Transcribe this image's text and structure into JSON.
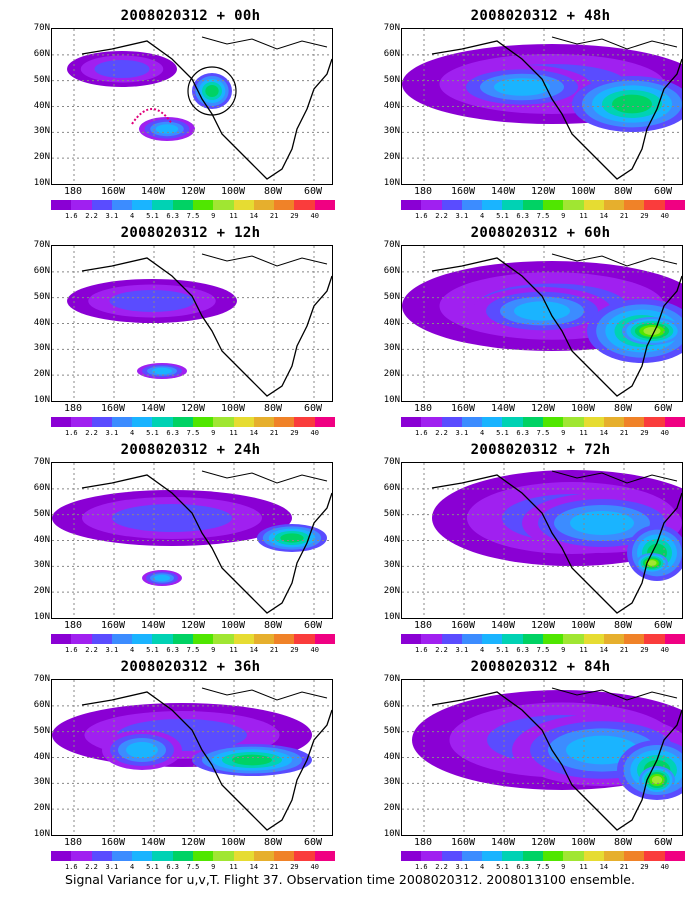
{
  "panels": [
    {
      "title": "2008020312 + 00h"
    },
    {
      "title": "2008020312 + 48h"
    },
    {
      "title": "2008020312 + 12h"
    },
    {
      "title": "2008020312 + 60h"
    },
    {
      "title": "2008020312 + 24h"
    },
    {
      "title": "2008020312 + 72h"
    },
    {
      "title": "2008020312 + 36h"
    },
    {
      "title": "2008020312 + 84h"
    }
  ],
  "lat_labels": [
    "70N",
    "60N",
    "50N",
    "40N",
    "30N",
    "20N",
    "10N"
  ],
  "lon_labels": [
    "180",
    "160W",
    "140W",
    "120W",
    "100W",
    "80W",
    "60W"
  ],
  "colorbar": {
    "labels": [
      "1.6",
      "2.2",
      "3.1",
      "4",
      "5.1",
      "6.3",
      "7.5",
      "9",
      "11",
      "14",
      "21",
      "29",
      "40"
    ],
    "colors": [
      "#8a00d4",
      "#a020f0",
      "#5a4cff",
      "#3c8cff",
      "#1ab4ff",
      "#00d2b4",
      "#00d264",
      "#50e600",
      "#a0e632",
      "#e6dc32",
      "#e6af2d",
      "#f08228",
      "#fa3c3c",
      "#f00082"
    ]
  },
  "footer": "Signal Variance for u,v,T. Flight 37. Observation time 2008020312. 2008013100 ensemble."
}
